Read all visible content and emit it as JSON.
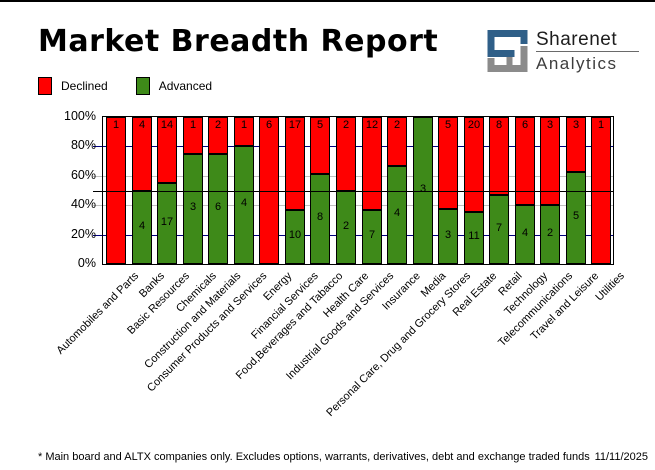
{
  "header": {
    "title": "Market Breadth Report",
    "logo": {
      "line1": "Sharenet",
      "line2": "Analytics"
    }
  },
  "legend": {
    "declined": "Declined",
    "advanced": "Advanced"
  },
  "footer": {
    "note": "* Main board and ALTX companies only. Excludes options, warrants, derivatives, debt and exchange traded funds",
    "date": "11/11/2025"
  },
  "colors": {
    "declined": "#FF0000",
    "advanced": "#3E8A19",
    "grid_major": "#000080",
    "grid_minor": "#C0C0C0",
    "midline": "#000000",
    "logo_blue": "#2F5F88",
    "logo_gray": "#8B8B8B"
  },
  "chart_data": {
    "type": "bar",
    "stacked": true,
    "normalized_percent": true,
    "title": "Market Breadth Report",
    "xlabel": "",
    "ylabel": "",
    "ylim": [
      0,
      100
    ],
    "legend_position": "top-left",
    "grid": "horizontal",
    "categories": [
      "Automobiles and Parts",
      "Banks",
      "Basic Resources",
      "Chemicals",
      "Construction and Materials",
      "Consumer Products and Services",
      "Energy",
      "Financial Services",
      "Food,Beverages and Tabacco",
      "Health Care",
      "Industrial Goods and Services",
      "Insurance",
      "Media",
      "Personal Care, Drug and Grocery Stores",
      "Real Estate",
      "Retail",
      "Technology",
      "Telecommunications",
      "Travel and Leisure",
      "Utilities"
    ],
    "series": [
      {
        "name": "Declined",
        "color": "#FF0000",
        "values": [
          1,
          4,
          14,
          1,
          2,
          1,
          6,
          17,
          5,
          2,
          12,
          2,
          0,
          5,
          20,
          8,
          6,
          3,
          3,
          1
        ]
      },
      {
        "name": "Advanced",
        "color": "#3E8A19",
        "values": [
          0,
          4,
          17,
          3,
          6,
          4,
          0,
          10,
          8,
          2,
          7,
          4,
          3,
          3,
          11,
          7,
          4,
          2,
          5,
          0
        ]
      }
    ],
    "y_axis": [
      {
        "label": "100%",
        "value": 100
      },
      {
        "label": "80%",
        "value": 80
      },
      {
        "label": "60%",
        "value": 60
      },
      {
        "label": "40%",
        "value": 40
      },
      {
        "label": "20%",
        "value": 20
      },
      {
        "label": "0%",
        "value": 0
      }
    ],
    "gridlines": [
      {
        "value": 80,
        "style": "major"
      },
      {
        "value": 60,
        "style": "minor"
      },
      {
        "value": 40,
        "style": "minor"
      },
      {
        "value": 20,
        "style": "major"
      }
    ],
    "midline_value": 50
  }
}
